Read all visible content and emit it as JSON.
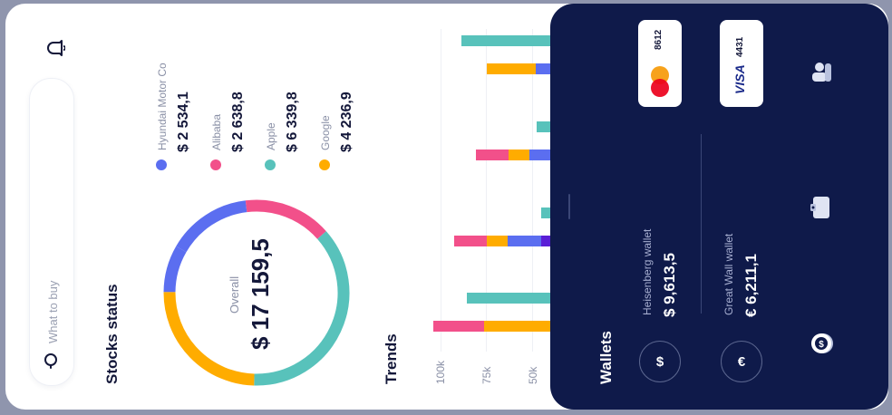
{
  "search": {
    "placeholder": "What to buy"
  },
  "stocks": {
    "title": "Stocks status",
    "items": [
      {
        "name": "Hyundai Motor Co",
        "value": "$ 2 534,1",
        "color": "#5b6ef0"
      },
      {
        "name": "Alibaba",
        "value": "$ 2 638,8",
        "color": "#f2508a"
      },
      {
        "name": "Apple",
        "value": "$ 6 339,8",
        "color": "#58c2bb"
      },
      {
        "name": "Google",
        "value": "$ 4 236,9",
        "color": "#ffac00"
      }
    ],
    "overall_label": "Overall",
    "overall_value": "$ 17 159,5",
    "donut_shares": [
      0.1477,
      0.1538,
      0.3695,
      0.2469,
      0.0821
    ]
  },
  "trends": {
    "title": "Trends",
    "ticks": [
      "100k",
      "75k",
      "50k"
    ],
    "colors": {
      "hyundai": "#5b6ef0",
      "alibaba": "#f2508a",
      "apple": "#58c2bb",
      "google": "#ffac00",
      "purple": "#5a1fd6"
    }
  },
  "wallets": {
    "title": "Wallets",
    "items": [
      {
        "name": "Heisenberg wallet",
        "value": "$ 9,613,5",
        "currency_symbol": "$"
      },
      {
        "name": "Great Wall wallet",
        "value": "€ 6,211,1",
        "currency_symbol": "€"
      }
    ],
    "cards": [
      {
        "brand": "mastercard",
        "number": "8612"
      },
      {
        "brand": "VISA",
        "number": "4431"
      }
    ]
  },
  "icons": [
    "bell-icon",
    "search-icon",
    "coin-icon",
    "wallet-icon",
    "users-icon",
    "mastercard-logo",
    "visa-logo"
  ]
}
